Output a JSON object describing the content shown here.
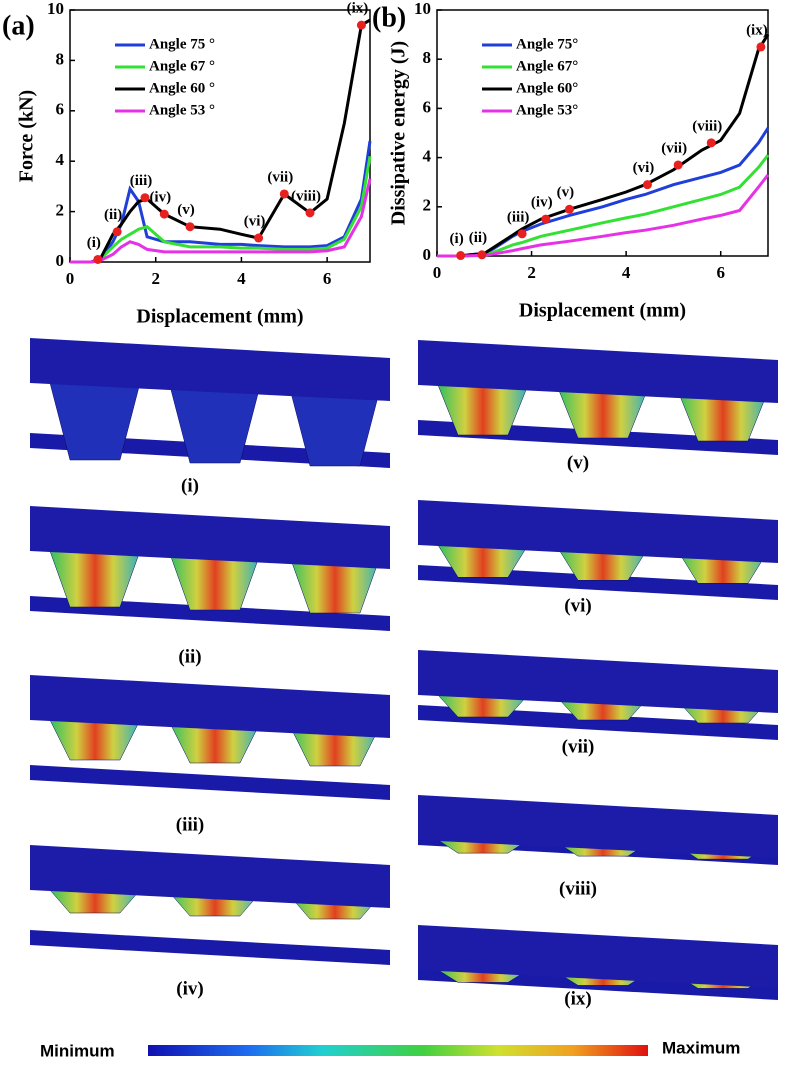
{
  "chart_data": [
    {
      "type": "line",
      "panel": "(a)",
      "ylabel": "Force (kN)",
      "xlabel": "Displacement (mm)",
      "xlim": [
        0,
        7
      ],
      "ylim": [
        0,
        10
      ],
      "xticks": [
        0,
        2,
        4,
        6
      ],
      "yticks": [
        0,
        2,
        4,
        6,
        8,
        10
      ],
      "legend": "upper left",
      "x": [
        0,
        0.5,
        0.7,
        1.0,
        1.2,
        1.4,
        1.6,
        1.8,
        2.2,
        2.8,
        3.5,
        4.0,
        4.4,
        5.0,
        5.6,
        6.0,
        6.4,
        6.8,
        7.0
      ],
      "series": [
        {
          "name": "Angle 75 °",
          "color": "#1f3fd8",
          "values": [
            0,
            0,
            0.1,
            0.8,
            1.5,
            2.9,
            2.4,
            1.0,
            0.8,
            0.8,
            0.7,
            0.7,
            0.65,
            0.6,
            0.6,
            0.65,
            1.0,
            2.5,
            4.8
          ]
        },
        {
          "name": "Angle 67 °",
          "color": "#33e033",
          "values": [
            0,
            0,
            0.1,
            0.6,
            0.9,
            1.1,
            1.3,
            1.4,
            0.8,
            0.6,
            0.6,
            0.55,
            0.55,
            0.5,
            0.5,
            0.55,
            0.9,
            2.2,
            4.2
          ]
        },
        {
          "name": "Angle 60 °",
          "color": "#000000",
          "values": [
            0,
            0,
            0.1,
            1.1,
            1.5,
            2.0,
            2.4,
            2.5,
            1.9,
            1.4,
            1.3,
            1.1,
            0.95,
            2.7,
            1.95,
            2.5,
            5.5,
            9.4,
            9.6
          ]
        },
        {
          "name": "Angle 53 °",
          "color": "#e632e6",
          "values": [
            0,
            0,
            0.05,
            0.3,
            0.6,
            0.8,
            0.7,
            0.5,
            0.4,
            0.4,
            0.4,
            0.4,
            0.4,
            0.4,
            0.4,
            0.45,
            0.6,
            1.8,
            3.3
          ]
        }
      ],
      "markers": [
        {
          "label": "(i)",
          "x": 0.65,
          "y": 0.1
        },
        {
          "label": "(ii)",
          "x": 1.1,
          "y": 1.2
        },
        {
          "label": "(iii)",
          "x": 1.75,
          "y": 2.55
        },
        {
          "label": "(iv)",
          "x": 2.2,
          "y": 1.9
        },
        {
          "label": "(v)",
          "x": 2.8,
          "y": 1.4
        },
        {
          "label": "(vi)",
          "x": 4.4,
          "y": 0.95
        },
        {
          "label": "(vii)",
          "x": 5.0,
          "y": 2.7
        },
        {
          "label": "(viii)",
          "x": 5.6,
          "y": 1.95
        },
        {
          "label": "(ix)",
          "x": 6.8,
          "y": 9.4
        }
      ]
    },
    {
      "type": "line",
      "panel": "(b)",
      "ylabel": "Dissipative energy (J)",
      "xlabel": "Displacement (mm)",
      "xlim": [
        0,
        7
      ],
      "ylim": [
        0,
        10
      ],
      "xticks": [
        0,
        2,
        4,
        6
      ],
      "yticks": [
        0,
        2,
        4,
        6,
        8,
        10
      ],
      "legend": "upper left",
      "x": [
        0,
        0.5,
        0.7,
        1.0,
        1.2,
        1.4,
        1.6,
        1.8,
        2.2,
        2.8,
        3.5,
        4.0,
        4.4,
        5.0,
        5.6,
        6.0,
        6.4,
        6.8,
        7.0
      ],
      "series": [
        {
          "name": "Angle 75°",
          "color": "#1f3fd8",
          "values": [
            0,
            0,
            0.05,
            0.1,
            0.3,
            0.55,
            0.8,
            1.0,
            1.3,
            1.65,
            2.0,
            2.3,
            2.5,
            2.9,
            3.2,
            3.4,
            3.7,
            4.6,
            5.2
          ]
        },
        {
          "name": "Angle 67°",
          "color": "#33e033",
          "values": [
            0,
            0,
            0.02,
            0.05,
            0.15,
            0.3,
            0.45,
            0.55,
            0.8,
            1.05,
            1.35,
            1.55,
            1.7,
            2.0,
            2.3,
            2.5,
            2.8,
            3.6,
            4.1
          ]
        },
        {
          "name": "Angle 60°",
          "color": "#000000",
          "values": [
            0,
            0,
            0.05,
            0.1,
            0.35,
            0.6,
            0.85,
            1.1,
            1.5,
            1.9,
            2.3,
            2.6,
            2.9,
            3.5,
            4.3,
            4.7,
            5.8,
            8.4,
            9.0
          ]
        },
        {
          "name": "Angle 53°",
          "color": "#e632e6",
          "values": [
            0,
            0,
            0.01,
            0.03,
            0.08,
            0.15,
            0.22,
            0.3,
            0.45,
            0.6,
            0.8,
            0.95,
            1.05,
            1.25,
            1.5,
            1.65,
            1.85,
            2.8,
            3.3
          ]
        }
      ],
      "markers": [
        {
          "label": "(i)",
          "x": 0.5,
          "y": 0.02
        },
        {
          "label": "(ii)",
          "x": 0.95,
          "y": 0.05
        },
        {
          "label": "(iii)",
          "x": 1.8,
          "y": 0.9
        },
        {
          "label": "(iv)",
          "x": 2.3,
          "y": 1.5
        },
        {
          "label": "(v)",
          "x": 2.8,
          "y": 1.9
        },
        {
          "label": "(vi)",
          "x": 4.45,
          "y": 2.9
        },
        {
          "label": "(vii)",
          "x": 5.1,
          "y": 3.7
        },
        {
          "label": "(viii)",
          "x": 5.8,
          "y": 4.6
        },
        {
          "label": "(ix)",
          "x": 6.85,
          "y": 8.5
        }
      ]
    }
  ],
  "panels": [
    "(i)",
    "(ii)",
    "(iii)",
    "(iv)",
    "(v)",
    "(vi)",
    "(vii)",
    "(viii)",
    "(ix)"
  ],
  "colorbar": {
    "min_label": "Minimum",
    "max_label": "Maximum"
  }
}
